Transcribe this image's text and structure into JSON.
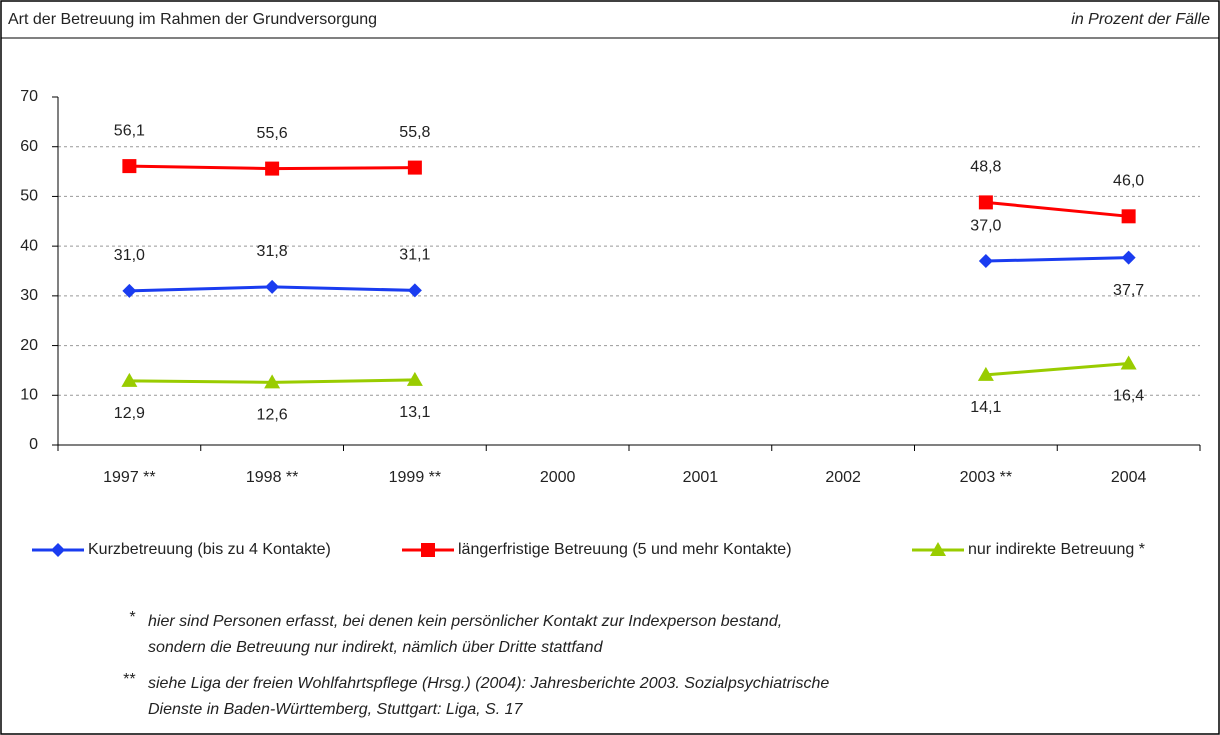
{
  "chart_data": {
    "type": "line",
    "title": "Art der Betreuung im Rahmen der Grundversorgung",
    "subtitle": "in Prozent der Fälle",
    "categories": [
      "1997 **",
      "1998 **",
      "1999 **",
      "2000",
      "2001",
      "2002",
      "2003 **",
      "2004"
    ],
    "series": [
      {
        "name": "Kurzbetreuung (bis zu 4 Kontakte)",
        "color": "#1a3cf0",
        "marker": "diamond",
        "values": [
          31.0,
          31.8,
          31.1,
          null,
          null,
          null,
          37.0,
          37.7
        ],
        "value_labels": [
          "31,0",
          "31,8",
          "31,1",
          null,
          null,
          null,
          "37,0",
          "37,7"
        ]
      },
      {
        "name": "längerfristige Betreuung (5 und mehr Kontakte)",
        "color": "#ff0000",
        "marker": "square",
        "values": [
          56.1,
          55.6,
          55.8,
          null,
          null,
          null,
          48.8,
          46.0
        ],
        "value_labels": [
          "56,1",
          "55,6",
          "55,8",
          null,
          null,
          null,
          "48,8",
          "46,0"
        ]
      },
      {
        "name": "nur indirekte Betreuung *",
        "color": "#99cc00",
        "marker": "triangle",
        "values": [
          12.9,
          12.6,
          13.1,
          null,
          null,
          null,
          14.1,
          16.4
        ],
        "value_labels": [
          "12,9",
          "12,6",
          "13,1",
          null,
          null,
          null,
          "14,1",
          "16,4"
        ]
      }
    ],
    "ylim": [
      0,
      70
    ],
    "yticks": [
      0,
      10,
      20,
      30,
      40,
      50,
      60,
      70
    ],
    "grid": true,
    "legend": "bottom",
    "footnotes": [
      {
        "mark": "*",
        "lines": [
          "hier sind Personen erfasst, bei denen kein persönlicher Kontakt zur Indexperson bestand,",
          "sondern die Betreuung nur indirekt, nämlich über Dritte stattfand"
        ]
      },
      {
        "mark": "**",
        "lines": [
          "siehe Liga der freien Wohlfahrtspflege (Hrsg.) (2004): Jahresberichte 2003. Sozialpsychiatrische",
          "Dienste in Baden-Württemberg, Stuttgart: Liga, S. 17"
        ]
      }
    ]
  }
}
